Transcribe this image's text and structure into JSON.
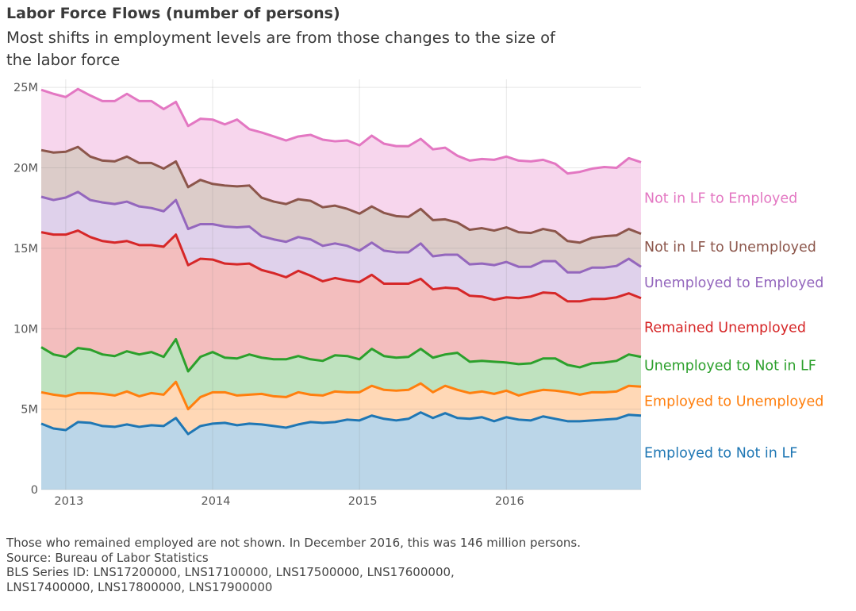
{
  "title": "Labor Force Flows (number of persons)",
  "subtitle": "Most shifts in employment levels are from those changes to the size of the labor force",
  "footer": {
    "note": "Those who remained employed are not shown. In December 2016, this was 146 million persons.",
    "source": "Source: Bureau of Labor Statistics",
    "series_line1": "BLS Series ID: LNS17200000, LNS17100000, LNS17500000, LNS17600000,",
    "series_line2": "LNS17400000, LNS17800000, LNS17900000"
  },
  "chart_data": {
    "type": "area",
    "stacked": true,
    "unit": "persons",
    "x_start": "2012-11",
    "x_end": "2016-12",
    "x": [
      "2012-11",
      "2012-12",
      "2013-01",
      "2013-02",
      "2013-03",
      "2013-04",
      "2013-05",
      "2013-06",
      "2013-07",
      "2013-08",
      "2013-09",
      "2013-10",
      "2013-11",
      "2013-12",
      "2014-01",
      "2014-02",
      "2014-03",
      "2014-04",
      "2014-05",
      "2014-06",
      "2014-07",
      "2014-08",
      "2014-09",
      "2014-10",
      "2014-11",
      "2014-12",
      "2015-01",
      "2015-02",
      "2015-03",
      "2015-04",
      "2015-05",
      "2015-06",
      "2015-07",
      "2015-08",
      "2015-09",
      "2015-10",
      "2015-11",
      "2015-12",
      "2016-01",
      "2016-02",
      "2016-03",
      "2016-04",
      "2016-05",
      "2016-06",
      "2016-07",
      "2016-08",
      "2016-09",
      "2016-10",
      "2016-11",
      "2016-12"
    ],
    "xticks": [
      {
        "date": "2013-01",
        "label": "2013"
      },
      {
        "date": "2014-01",
        "label": "2014"
      },
      {
        "date": "2015-01",
        "label": "2015"
      },
      {
        "date": "2016-01",
        "label": "2016"
      }
    ],
    "ylim": [
      0,
      25500000
    ],
    "yticks": [
      {
        "value": 0,
        "label": "0"
      },
      {
        "value": 5000000,
        "label": "5M"
      },
      {
        "value": 10000000,
        "label": "10M"
      },
      {
        "value": 15000000,
        "label": "15M"
      },
      {
        "value": 20000000,
        "label": "20M"
      },
      {
        "value": 25000000,
        "label": "25M"
      }
    ],
    "grid": true,
    "series": [
      {
        "name": "Employed to Not in LF",
        "color": "#1f77b4",
        "values": [
          4100000,
          3800000,
          3700000,
          4200000,
          4150000,
          3950000,
          3900000,
          4050000,
          3900000,
          4000000,
          3950000,
          4450000,
          3450000,
          3950000,
          4100000,
          4150000,
          4000000,
          4100000,
          4050000,
          3950000,
          3850000,
          4050000,
          4200000,
          4150000,
          4200000,
          4350000,
          4300000,
          4600000,
          4400000,
          4300000,
          4400000,
          4800000,
          4450000,
          4750000,
          4450000,
          4400000,
          4500000,
          4250000,
          4500000,
          4350000,
          4300000,
          4550000,
          4400000,
          4250000,
          4250000,
          4300000,
          4350000,
          4400000,
          4650000,
          4600000
        ]
      },
      {
        "name": "Employed to Unemployed",
        "color": "#ff7f0e",
        "values": [
          1950000,
          2100000,
          2100000,
          1800000,
          1850000,
          2000000,
          1950000,
          2050000,
          1900000,
          2000000,
          1950000,
          2250000,
          1550000,
          1800000,
          1950000,
          1900000,
          1850000,
          1800000,
          1900000,
          1850000,
          1900000,
          2000000,
          1700000,
          1700000,
          1900000,
          1700000,
          1750000,
          1850000,
          1800000,
          1850000,
          1800000,
          1800000,
          1600000,
          1700000,
          1750000,
          1600000,
          1600000,
          1700000,
          1650000,
          1500000,
          1750000,
          1650000,
          1750000,
          1800000,
          1650000,
          1750000,
          1700000,
          1700000,
          1800000,
          1800000
        ]
      },
      {
        "name": "Unemployed to Not in LF",
        "color": "#2ca02c",
        "values": [
          2800000,
          2500000,
          2450000,
          2800000,
          2700000,
          2450000,
          2450000,
          2500000,
          2600000,
          2550000,
          2350000,
          2650000,
          2350000,
          2500000,
          2500000,
          2150000,
          2300000,
          2500000,
          2250000,
          2300000,
          2350000,
          2250000,
          2200000,
          2150000,
          2250000,
          2250000,
          2050000,
          2300000,
          2100000,
          2050000,
          2050000,
          2150000,
          2150000,
          1950000,
          2300000,
          1950000,
          1900000,
          2000000,
          1750000,
          1950000,
          1800000,
          1950000,
          2000000,
          1700000,
          1700000,
          1800000,
          1850000,
          1900000,
          1950000,
          1850000
        ]
      },
      {
        "name": "Remained Unemployed",
        "color": "#d62728",
        "values": [
          7150000,
          7450000,
          7600000,
          7300000,
          7000000,
          7050000,
          7050000,
          6850000,
          6800000,
          6650000,
          6850000,
          6500000,
          6600000,
          6100000,
          5750000,
          5850000,
          5850000,
          5650000,
          5450000,
          5350000,
          5100000,
          5300000,
          5200000,
          4950000,
          4800000,
          4700000,
          4800000,
          4600000,
          4500000,
          4600000,
          4550000,
          4350000,
          4250000,
          4150000,
          4000000,
          4100000,
          4000000,
          3850000,
          4050000,
          4100000,
          4150000,
          4100000,
          4050000,
          3950000,
          4100000,
          4000000,
          3950000,
          3950000,
          3800000,
          3650000
        ]
      },
      {
        "name": "Unemployed to Employed",
        "color": "#9467bd",
        "values": [
          2200000,
          2150000,
          2300000,
          2400000,
          2300000,
          2400000,
          2400000,
          2450000,
          2400000,
          2300000,
          2200000,
          2150000,
          2250000,
          2150000,
          2200000,
          2300000,
          2300000,
          2300000,
          2100000,
          2100000,
          2200000,
          2100000,
          2250000,
          2200000,
          2150000,
          2150000,
          1950000,
          2000000,
          2050000,
          1950000,
          1950000,
          2200000,
          2050000,
          2050000,
          2100000,
          1950000,
          2050000,
          2150000,
          2200000,
          1950000,
          1850000,
          1950000,
          2000000,
          1800000,
          1800000,
          1950000,
          1950000,
          1950000,
          2150000,
          1950000
        ]
      },
      {
        "name": "Not in LF to Unemployed",
        "color": "#8c564b",
        "values": [
          2900000,
          2950000,
          2850000,
          2800000,
          2700000,
          2600000,
          2650000,
          2800000,
          2700000,
          2800000,
          2650000,
          2400000,
          2600000,
          2750000,
          2500000,
          2550000,
          2550000,
          2550000,
          2400000,
          2350000,
          2350000,
          2350000,
          2400000,
          2400000,
          2350000,
          2300000,
          2300000,
          2250000,
          2350000,
          2250000,
          2200000,
          2150000,
          2250000,
          2200000,
          2000000,
          2150000,
          2200000,
          2150000,
          2150000,
          2150000,
          2100000,
          2000000,
          1850000,
          1950000,
          1850000,
          1850000,
          1950000,
          1900000,
          1850000,
          2050000
        ]
      },
      {
        "name": "Not in LF to Employed",
        "color": "#e377c2",
        "values": [
          3750000,
          3650000,
          3400000,
          3600000,
          3800000,
          3700000,
          3750000,
          3900000,
          3850000,
          3850000,
          3700000,
          3700000,
          3800000,
          3800000,
          4000000,
          3800000,
          4150000,
          3500000,
          4050000,
          4050000,
          3950000,
          3900000,
          4100000,
          4200000,
          4000000,
          4250000,
          4250000,
          4400000,
          4300000,
          4350000,
          4400000,
          4350000,
          4400000,
          4450000,
          4150000,
          4300000,
          4300000,
          4400000,
          4400000,
          4450000,
          4450000,
          4300000,
          4200000,
          4200000,
          4400000,
          4300000,
          4300000,
          4200000,
          4400000,
          4450000
        ]
      }
    ]
  }
}
